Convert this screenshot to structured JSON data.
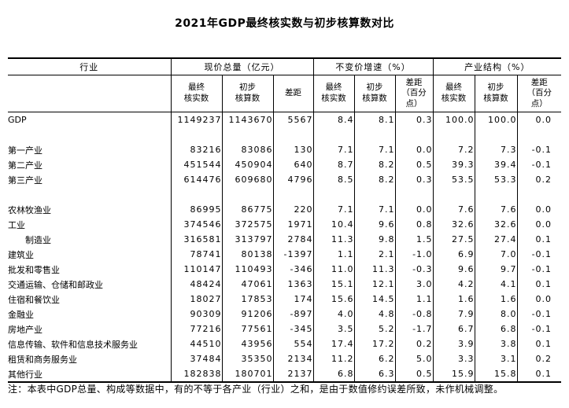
{
  "title": "2021年GDP最终核实数与初步核算数对比",
  "colors": {
    "background": "#ffffff",
    "text": "#000000",
    "border": "#000000"
  },
  "table": {
    "col_groups": [
      {
        "label": "行业"
      },
      {
        "label": "现价总量（亿元）"
      },
      {
        "label": "不变价增速（%）"
      },
      {
        "label": "产业结构（%）"
      }
    ],
    "sub_headers": [
      "最终\n核实数",
      "初步\n核算数",
      "差距",
      "最终\n核实数",
      "初步\n核算数",
      "差距\n（百分\n点）",
      "最终\n核实数",
      "初步\n核算数",
      "差距\n（百分\n点）"
    ],
    "rows": [
      {
        "label": "GDP",
        "indent": false,
        "values": [
          "1149237",
          "1143670",
          "5567",
          "8.4",
          "8.1",
          "0.3",
          "100.0",
          "100.0",
          "0.0"
        ]
      },
      {
        "spacer": true
      },
      {
        "label": "第一产业",
        "indent": false,
        "values": [
          "83216",
          "83086",
          "130",
          "7.1",
          "7.1",
          "0.0",
          "7.2",
          "7.3",
          "-0.1"
        ]
      },
      {
        "label": "第二产业",
        "indent": false,
        "values": [
          "451544",
          "450904",
          "640",
          "8.7",
          "8.2",
          "0.5",
          "39.3",
          "39.4",
          "-0.1"
        ]
      },
      {
        "label": "第三产业",
        "indent": false,
        "values": [
          "614476",
          "609680",
          "4796",
          "8.5",
          "8.2",
          "0.3",
          "53.5",
          "53.3",
          "0.2"
        ]
      },
      {
        "spacer": true
      },
      {
        "label": "农林牧渔业",
        "indent": false,
        "values": [
          "86995",
          "86775",
          "220",
          "7.1",
          "7.1",
          "0.0",
          "7.6",
          "7.6",
          "0.0"
        ]
      },
      {
        "label": "工业",
        "indent": false,
        "values": [
          "374546",
          "372575",
          "1971",
          "10.4",
          "9.6",
          "0.8",
          "32.6",
          "32.6",
          "0.0"
        ]
      },
      {
        "label": "制造业",
        "indent": true,
        "values": [
          "316581",
          "313797",
          "2784",
          "11.3",
          "9.8",
          "1.5",
          "27.5",
          "27.4",
          "0.1"
        ]
      },
      {
        "label": "建筑业",
        "indent": false,
        "values": [
          "78741",
          "80138",
          "-1397",
          "1.1",
          "2.1",
          "-1.0",
          "6.9",
          "7.0",
          "-0.1"
        ]
      },
      {
        "label": "批发和零售业",
        "indent": false,
        "values": [
          "110147",
          "110493",
          "-346",
          "11.0",
          "11.3",
          "-0.3",
          "9.6",
          "9.7",
          "-0.1"
        ]
      },
      {
        "label": "交通运输、仓储和邮政业",
        "indent": false,
        "values": [
          "48424",
          "47061",
          "1363",
          "15.1",
          "12.1",
          "3.0",
          "4.2",
          "4.1",
          "0.1"
        ]
      },
      {
        "label": "住宿和餐饮业",
        "indent": false,
        "values": [
          "18027",
          "17853",
          "174",
          "15.6",
          "14.5",
          "1.1",
          "1.6",
          "1.6",
          "0.0"
        ]
      },
      {
        "label": "金融业",
        "indent": false,
        "values": [
          "90309",
          "91206",
          "-897",
          "4.0",
          "4.8",
          "-0.8",
          "7.9",
          "8.0",
          "-0.1"
        ]
      },
      {
        "label": "房地产业",
        "indent": false,
        "values": [
          "77216",
          "77561",
          "-345",
          "3.5",
          "5.2",
          "-1.7",
          "6.7",
          "6.8",
          "-0.1"
        ]
      },
      {
        "label": "信息传输、软件和信息技术服务业",
        "indent": false,
        "values": [
          "44510",
          "43956",
          "554",
          "17.4",
          "17.2",
          "0.2",
          "3.9",
          "3.8",
          "0.1"
        ]
      },
      {
        "label": "租赁和商务服务业",
        "indent": false,
        "values": [
          "37484",
          "35350",
          "2134",
          "11.2",
          "6.2",
          "5.0",
          "3.3",
          "3.1",
          "0.2"
        ]
      },
      {
        "label": "其他行业",
        "indent": false,
        "values": [
          "182838",
          "180701",
          "2137",
          "6.8",
          "6.3",
          "0.5",
          "15.9",
          "15.8",
          "0.1"
        ]
      }
    ]
  },
  "note": "注：本表中GDP总量、构成等数据中，有的不等于各产业（行业）之和，是由于数值修约误差所致，未作机械调整。"
}
